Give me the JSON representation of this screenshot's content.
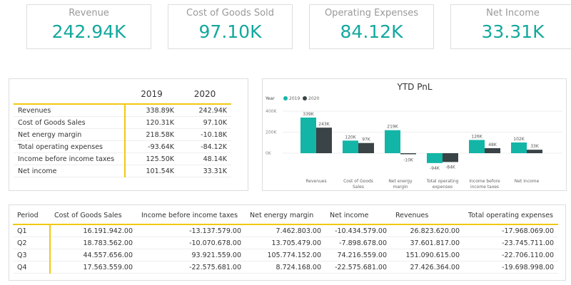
{
  "kpis": [
    {
      "label": "Revenue",
      "value": "242.94K"
    },
    {
      "label": "Cost of Goods Sold",
      "value": "97.10K"
    },
    {
      "label": "Operating Expenses",
      "value": "84.12K"
    },
    {
      "label": "Net Income",
      "value": "33.31K"
    }
  ],
  "pnl_table": {
    "columns": [
      "",
      "2019",
      "2020"
    ],
    "rows": [
      [
        "Revenues",
        "338.89K",
        "242.94K"
      ],
      [
        "Cost of Goods Sales",
        "120.31K",
        "97.10K"
      ],
      [
        "Net energy margin",
        "218.58K",
        "-10.18K"
      ],
      [
        "Total operating expenses",
        "-93.64K",
        "-84.12K"
      ],
      [
        "Income before income taxes",
        "125.50K",
        "48.14K"
      ],
      [
        "Net income",
        "101.54K",
        "33.31K"
      ]
    ]
  },
  "chart_data": {
    "type": "bar",
    "title": "YTD PnL",
    "legend_title": "Year",
    "legend_position": "top-left",
    "categories": [
      [
        "Revenues"
      ],
      [
        "Cost of Goods",
        "Sales"
      ],
      [
        "Net energy",
        "margin"
      ],
      [
        "Total operating",
        "expenses"
      ],
      [
        "Income before",
        "income taxes"
      ],
      [
        "Net income"
      ]
    ],
    "series": [
      {
        "name": "2019",
        "color": "#13b5a7",
        "values": [
          339,
          120,
          219,
          -94,
          126,
          102
        ],
        "labels": [
          "339K",
          "120K",
          "219K",
          "-94K",
          "126K",
          "102K"
        ]
      },
      {
        "name": "2020",
        "color": "#3a4446",
        "values": [
          243,
          97,
          -10,
          -84,
          48,
          33
        ],
        "labels": [
          "243K",
          "97K",
          "-10K",
          "-84K",
          "48K",
          "33K"
        ]
      }
    ],
    "yticks": [
      0,
      200,
      400
    ],
    "ytick_labels": [
      "0K",
      "200K",
      "400K"
    ],
    "ylim": [
      -100,
      400
    ],
    "grid": true
  },
  "quarter_table": {
    "columns": [
      "Period",
      "Cost of Goods Sales",
      "Income before income taxes",
      "Net energy margin",
      "Net income",
      "Revenues",
      "Total operating expenses"
    ],
    "rows": [
      [
        "Q1",
        "16.191.942.00",
        "-13.137.579.00",
        "7.462.803.00",
        "-10.434.579.00",
        "26.823.620.00",
        "-17.968.069.00"
      ],
      [
        "Q2",
        "18.783.562.00",
        "-10.070.678.00",
        "13.705.479.00",
        "-7.898.678.00",
        "37.601.817.00",
        "-23.745.711.00"
      ],
      [
        "Q3",
        "44.557.656.00",
        "93.921.559.00",
        "105.774.152.00",
        "74.216.559.00",
        "151.090.615.00",
        "-22.706.110.00"
      ],
      [
        "Q4",
        "17.563.559.00",
        "-22.575.681.00",
        "8.724.168.00",
        "-22.575.681.00",
        "27.426.364.00",
        "-19.698.998.00"
      ]
    ]
  }
}
